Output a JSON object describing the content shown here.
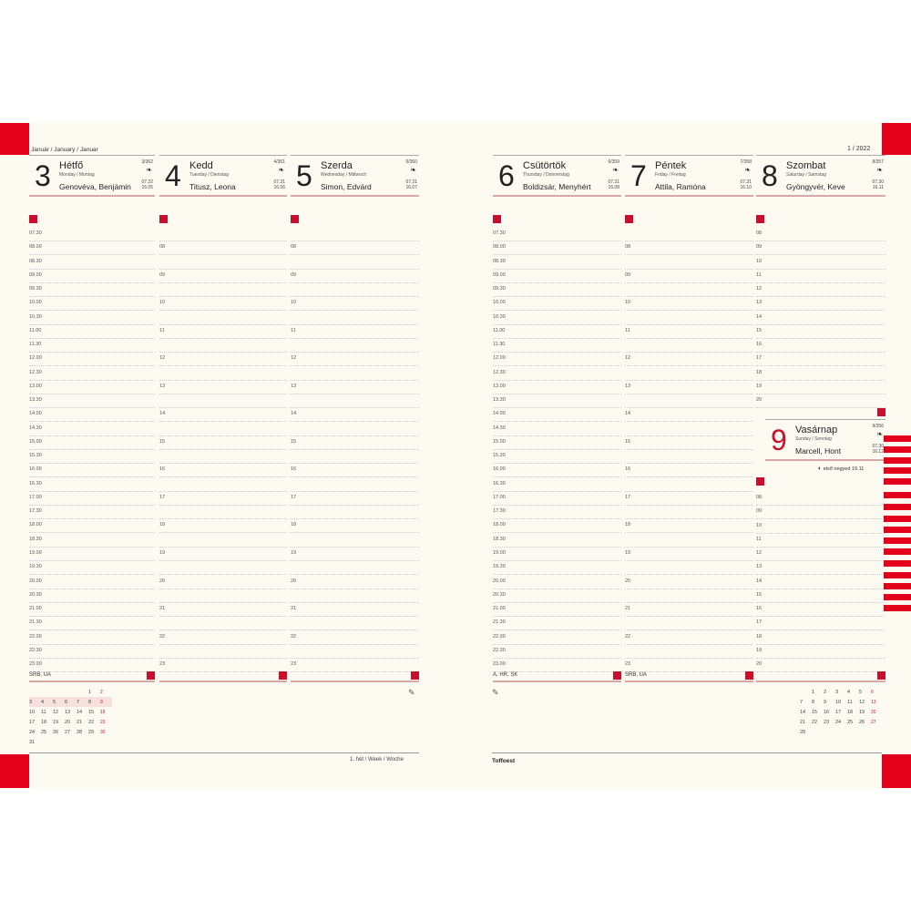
{
  "left_page": {
    "month_label": "Január / January / Januar",
    "week_label": "1. hét / Week / Woche",
    "footer_labels": [
      "SRB, UA",
      "",
      ""
    ],
    "times": [
      "07.30",
      "08.00",
      "08.30",
      "09.00",
      "09.30",
      "10.00",
      "10.30",
      "11.00",
      "11.30",
      "12.00",
      "12.30",
      "13.00",
      "13.30",
      "14.00",
      "14.30",
      "15.00",
      "15.30",
      "16.00",
      "16.30",
      "17.00",
      "17.30",
      "18.00",
      "18.30",
      "19.00",
      "19.30",
      "20.00",
      "20.30",
      "21.00",
      "21.30",
      "22.00",
      "22.30",
      "23.00"
    ],
    "days": [
      {
        "num": "3",
        "name": "Hétfő",
        "sub": "Monday / Montag",
        "names": "Genovéva, Benjámin",
        "count": "3/362",
        "sunrise": "07.32",
        "sunset": "16.05"
      },
      {
        "num": "4",
        "name": "Kedd",
        "sub": "Tuesday / Dienstag",
        "names": "Titusz, Leona",
        "count": "4/361",
        "sunrise": "07.31",
        "sunset": "16.06"
      },
      {
        "num": "5",
        "name": "Szerda",
        "sub": "Wednesday / Mittwoch",
        "names": "Simon, Edvárd",
        "count": "5/360",
        "sunrise": "07.31",
        "sunset": "16.07"
      }
    ],
    "mini_calendar": {
      "weeks": [
        [
          "",
          "",
          "",
          "",
          "",
          "1",
          "2"
        ],
        [
          "3",
          "4",
          "5",
          "6",
          "7",
          "8",
          "9"
        ],
        [
          "10",
          "11",
          "12",
          "13",
          "14",
          "15",
          "16"
        ],
        [
          "17",
          "18",
          "19",
          "20",
          "21",
          "22",
          "23"
        ],
        [
          "24",
          "25",
          "26",
          "27",
          "28",
          "29",
          "30"
        ],
        [
          "31",
          "",
          "",
          "",
          "",
          "",
          ""
        ]
      ],
      "highlight_week": 1
    }
  },
  "right_page": {
    "year_label": "1 / 2022",
    "logo": "Toffoest",
    "footer_labels": [
      "A, HR, SK",
      "SRB, UA",
      ""
    ],
    "days": [
      {
        "num": "6",
        "name": "Csütörtök",
        "sub": "Thursday / Donnerstag",
        "names": "Boldizsár, Menyhért",
        "count": "6/359",
        "sunrise": "07.31",
        "sunset": "16.08"
      },
      {
        "num": "7",
        "name": "Péntek",
        "sub": "Friday / Freitag",
        "names": "Attila, Ramóna",
        "count": "7/358",
        "sunrise": "07.31",
        "sunset": "16.10"
      },
      {
        "num": "8",
        "name": "Szombat",
        "sub": "Saturday / Samstag",
        "names": "Gyöngyvér, Keve",
        "count": "8/357",
        "sunrise": "07.30",
        "sunset": "16.11"
      }
    ],
    "sunday": {
      "num": "9",
      "name": "Vasárnap",
      "sub": "Sunday / Sonntag",
      "names": "Marcell, Hont",
      "count": "9/356",
      "sunrise": "07.30",
      "sunset": "16.12",
      "moon_note": "első negyed 19.11"
    },
    "weekend_hours": [
      "08",
      "09",
      "10",
      "11",
      "12",
      "13",
      "14",
      "15",
      "16",
      "17",
      "18",
      "19",
      "20"
    ],
    "mini_calendar": {
      "weeks": [
        [
          "",
          "1",
          "2",
          "3",
          "4",
          "5",
          "6"
        ],
        [
          "7",
          "8",
          "9",
          "10",
          "11",
          "12",
          "13"
        ],
        [
          "14",
          "15",
          "16",
          "17",
          "18",
          "19",
          "20"
        ],
        [
          "21",
          "22",
          "23",
          "24",
          "25",
          "26",
          "27"
        ],
        [
          "28",
          "",
          "",
          "",
          "",
          "",
          ""
        ]
      ]
    }
  },
  "colors": {
    "accent": "#e3001b",
    "square": "#c8102e",
    "paper": "#fdfbf1"
  },
  "icons": {
    "leaf": "leaf-icon",
    "pen": "pen-icon",
    "moon": "moon-phase-icon"
  }
}
